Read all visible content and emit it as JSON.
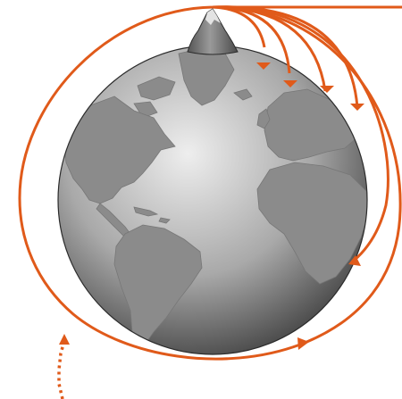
{
  "figure": {
    "subject": "newtons-cannonball",
    "colors": {
      "trajectory": "#e05a1a",
      "ocean_light": "#eeeeee",
      "ocean_mid": "#a9a9a9",
      "ocean_dark": "#3c3c3c",
      "land": "#8b8b8b",
      "land_edge": "#777777",
      "mountain": "#6f6f6f",
      "mountain_snow": "#e3e3e3",
      "outline": "#2b2b2b"
    },
    "trajectories": [
      {
        "kind": "falls-to-earth",
        "label": ""
      },
      {
        "kind": "falls-to-earth",
        "label": ""
      },
      {
        "kind": "falls-to-earth",
        "label": ""
      },
      {
        "kind": "falls-to-earth",
        "label": ""
      },
      {
        "kind": "long-fall",
        "label": ""
      },
      {
        "kind": "circular-orbit",
        "label": ""
      },
      {
        "kind": "escape-dotted",
        "label": ""
      }
    ]
  }
}
